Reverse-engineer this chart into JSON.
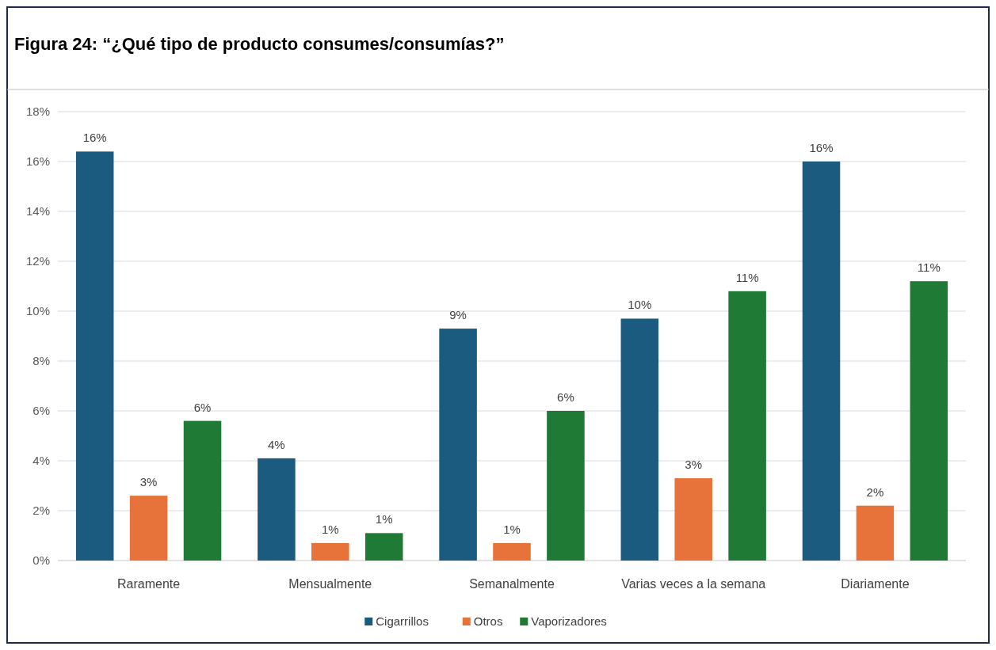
{
  "chart_data": {
    "type": "bar",
    "title": "Figura 24: “¿Qué tipo de producto consumes/consumías?”",
    "categories": [
      "Raramente",
      "Mensualmente",
      "Semanalmente",
      "Varias veces a la semana",
      "Diariamente"
    ],
    "series": [
      {
        "name": "Cigarrillos",
        "color": "#1c5b80",
        "values": [
          16.4,
          4.1,
          9.3,
          9.7,
          16.0
        ],
        "value_labels": [
          "16%",
          "4%",
          "9%",
          "10%",
          "16%"
        ]
      },
      {
        "name": "Otros",
        "color": "#e8733a",
        "values": [
          2.6,
          0.7,
          0.7,
          3.3,
          2.2
        ],
        "value_labels": [
          "3%",
          "1%",
          "1%",
          "3%",
          "2%"
        ]
      },
      {
        "name": "Vaporizadores",
        "color": "#1f7a35",
        "values": [
          5.6,
          1.1,
          6.0,
          10.8,
          11.2
        ],
        "value_labels": [
          "6%",
          "1%",
          "6%",
          "11%",
          "11%"
        ]
      }
    ],
    "ylim": [
      0,
      18
    ],
    "yticks": [
      {
        "value": 0,
        "label": "0%"
      },
      {
        "value": 2,
        "label": "2%"
      },
      {
        "value": 4,
        "label": "4%"
      },
      {
        "value": 6,
        "label": "6%"
      },
      {
        "value": 8,
        "label": "8%"
      },
      {
        "value": 10,
        "label": "10%"
      },
      {
        "value": 12,
        "label": "12%"
      },
      {
        "value": 14,
        "label": "14%"
      },
      {
        "value": 16,
        "label": "16%"
      },
      {
        "value": 18,
        "label": "18%"
      }
    ],
    "grid": "y",
    "legend": "bottom"
  }
}
